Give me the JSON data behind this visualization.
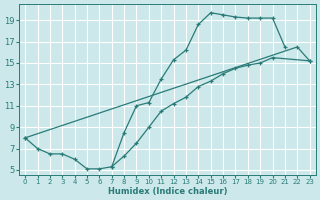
{
  "bg_color": "#cce8ea",
  "grid_color": "#b0d4d6",
  "line_color": "#2a7b78",
  "xlabel": "Humidex (Indice chaleur)",
  "xlim": [
    -0.5,
    23.5
  ],
  "ylim": [
    4.5,
    20.5
  ],
  "xticks": [
    0,
    1,
    2,
    3,
    4,
    5,
    6,
    7,
    8,
    9,
    10,
    11,
    12,
    13,
    14,
    15,
    16,
    17,
    18,
    19,
    20,
    21,
    22,
    23
  ],
  "yticks": [
    5,
    7,
    9,
    11,
    13,
    15,
    17,
    19
  ],
  "curve1_x": [
    0,
    1,
    2,
    3,
    4,
    5,
    6,
    7,
    8,
    9,
    10,
    11,
    12,
    13,
    14,
    15,
    16,
    17,
    18,
    19,
    20,
    21
  ],
  "curve1_y": [
    8.0,
    7.0,
    6.5,
    6.5,
    6.0,
    5.1,
    5.1,
    5.3,
    8.5,
    11.0,
    11.3,
    13.5,
    15.3,
    16.2,
    18.6,
    19.7,
    19.5,
    19.3,
    19.2,
    19.2,
    19.2,
    16.5
  ],
  "curve2_x": [
    0,
    22,
    23
  ],
  "curve2_y": [
    8.0,
    16.5,
    15.2
  ],
  "curve3_x": [
    7,
    8,
    9,
    10,
    11,
    12,
    13,
    14,
    15,
    16,
    17,
    18,
    19,
    20,
    23
  ],
  "curve3_y": [
    5.3,
    6.3,
    7.5,
    9.0,
    10.5,
    11.2,
    11.8,
    12.8,
    13.3,
    14.0,
    14.5,
    14.8,
    15.0,
    15.5,
    15.2
  ],
  "marker": "+",
  "markersize": 3,
  "linewidth": 0.9
}
